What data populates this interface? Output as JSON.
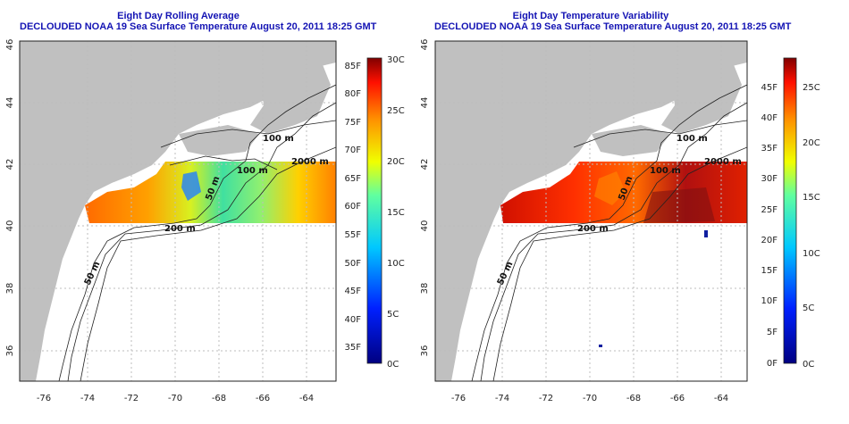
{
  "panels": [
    {
      "title_line1": "Eight Day Rolling Average",
      "title_line2": "DECLOUDED NOAA 19 Sea Surface Temperature August 20, 2011 18:25 GMT",
      "colorbar_f": [
        "85F",
        "80F",
        "75F",
        "70F",
        "65F",
        "60F",
        "55F",
        "50F",
        "45F",
        "40F",
        "35F"
      ],
      "colorbar_c": [
        "30C",
        "25C",
        "20C",
        "15C",
        "10C",
        "5C",
        "0C"
      ]
    },
    {
      "title_line1": "Eight Day Temperature Variability",
      "title_line2": "DECLOUDED NOAA 19 Sea Surface Temperature August 20, 2011 18:25 GMT",
      "colorbar_f": [
        "45F",
        "40F",
        "35F",
        "30F",
        "25F",
        "20F",
        "15F",
        "10F",
        "5F",
        "0F"
      ],
      "colorbar_c": [
        "25C",
        "20C",
        "15C",
        "10C",
        "5C",
        "0C"
      ]
    }
  ],
  "x_ticks": [
    "-76",
    "-74",
    "-72",
    "-70",
    "-68",
    "-66",
    "-64"
  ],
  "y_ticks": [
    "36",
    "38",
    "40",
    "42",
    "44",
    "46"
  ],
  "contour_labels": [
    "100 m",
    "2000 m",
    "100 m",
    "200 m",
    "50 m",
    "50 m"
  ],
  "colors": {
    "title": "#1414b4",
    "land": "#c0c0c0",
    "grid": "#bdbdbd"
  }
}
